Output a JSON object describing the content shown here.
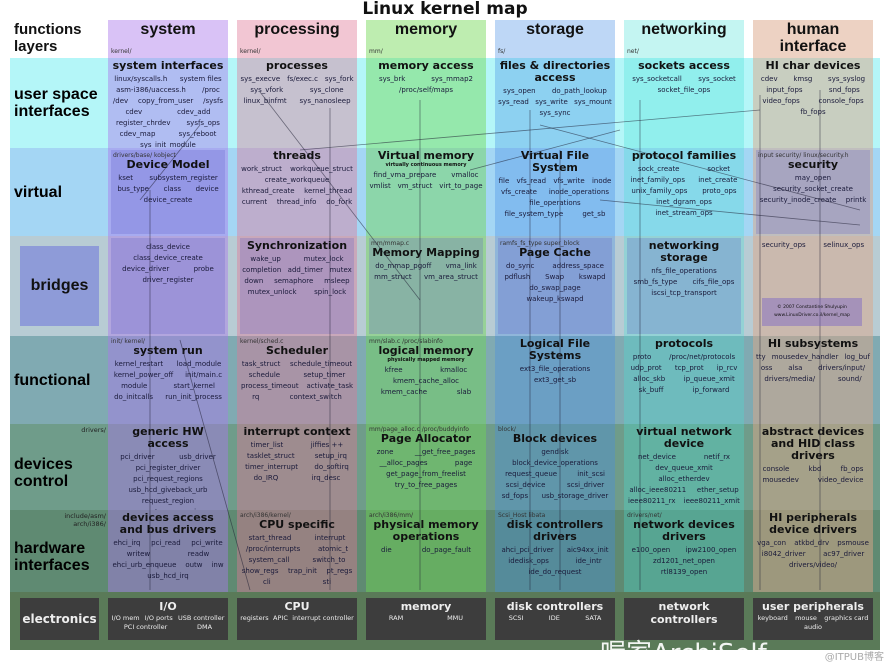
{
  "title": "Linux kernel map",
  "corner": {
    "line1": "functions",
    "line2": "layers"
  },
  "columns": [
    {
      "title": "system",
      "path": "kernel/",
      "color": "#d8b8f0"
    },
    {
      "title": "processing",
      "path": "kernel/",
      "color": "#eeb8c8"
    },
    {
      "title": "memory",
      "path": "mm/",
      "color": "#c8f0b8"
    },
    {
      "title": "storage",
      "path": "fs/",
      "color": "#a8d0f8"
    },
    {
      "title": "networking",
      "path": "net/",
      "color": "#a8f4f4"
    },
    {
      "title": "human interface",
      "path": "",
      "color": "#ecd0c4"
    }
  ],
  "rows": [
    {
      "label": "user space interfaces",
      "side": "",
      "color": "#b4f6f8"
    },
    {
      "label": "virtual",
      "side": "",
      "color": "#a4d6f4"
    },
    {
      "label": "bridges",
      "side": "",
      "color": "#b8ccd4"
    },
    {
      "label": "functional",
      "side": "",
      "color": "#80aab2"
    },
    {
      "label": "devices control",
      "side": "drivers/",
      "color": "#6f9c8a"
    },
    {
      "label": "hardware interfaces",
      "side": "include/asm/ arch/i386/",
      "color": "#5f8a72"
    }
  ],
  "cells": [
    [
      {
        "path": "",
        "title": "system interfaces",
        "sub": "",
        "items": [
          "linux/syscalls.h",
          "system files",
          "asm-i386/uaccess.h",
          "/proc",
          "/dev",
          "copy_from_user",
          "/sysfs",
          "cdev",
          "cdev_add",
          "register_chrdev",
          "sysfs_ops",
          "cdev_map",
          "sys_reboot",
          "sys_init_module"
        ]
      },
      {
        "path": "",
        "title": "processes",
        "sub": "",
        "items": [
          "sys_execve",
          "fs/exec.c",
          "sys_fork",
          "sys_vfork",
          "sys_clone",
          "linux_binfmt",
          "sys_nanosleep"
        ]
      },
      {
        "path": "",
        "title": "memory access",
        "sub": "",
        "items": [
          "sys_brk",
          "sys_mmap2",
          "/proc/self/maps"
        ]
      },
      {
        "path": "",
        "title": "files & directories access",
        "sub": "",
        "items": [
          "sys_open",
          "do_path_lookup",
          "sys_read",
          "sys_write",
          "sys_mount",
          "sys_sync"
        ]
      },
      {
        "path": "",
        "title": "sockets access",
        "sub": "",
        "items": [
          "sys_socketcall",
          "sys_socket",
          "socket_file_ops"
        ]
      },
      {
        "path": "",
        "title": "HI char devices",
        "sub": "",
        "items": [
          "cdev",
          "kmsg",
          "sys_syslog",
          "input_fops",
          "snd_fops",
          "video_fops",
          "console_fops",
          "fb_fops"
        ]
      }
    ],
    [
      {
        "path": "drivers/base/  kobject",
        "title": "Device Model",
        "sub": "",
        "items": [
          "kset",
          "subsystem_register",
          "bus_type",
          "class",
          "device",
          "device_create"
        ]
      },
      {
        "path": "",
        "title": "threads",
        "sub": "",
        "items": [
          "work_struct",
          "workqueue_struct",
          "create_workqueue",
          "kthread_create",
          "kernel_thread",
          "current",
          "thread_info",
          "do_fork"
        ]
      },
      {
        "path": "",
        "title": "Virtual memory",
        "sub": "virtually continuous memory",
        "items": [
          "find_vma_prepare",
          "vmalloc",
          "vmlist",
          "vm_struct",
          "virt_to_page"
        ]
      },
      {
        "path": "",
        "title": "Virtual File System",
        "sub": "",
        "items": [
          "file",
          "vfs_read",
          "vfs_write",
          "inode",
          "vfs_create",
          "inode_operations",
          "file_operations",
          "file_system_type",
          "get_sb"
        ]
      },
      {
        "path": "",
        "title": "protocol families",
        "sub": "",
        "items": [
          "sock_create",
          "socket",
          "inet_family_ops",
          "inet_create",
          "unix_family_ops",
          "proto_ops",
          "inet_dgram_ops",
          "inet_stream_ops"
        ]
      },
      {
        "path": "input  security/  linux/security.h",
        "title": "security",
        "sub": "",
        "items": [
          "may_open",
          "security_socket_create",
          "security_inode_create",
          "printk"
        ]
      }
    ],
    [
      {
        "path": "",
        "title": "",
        "sub": "",
        "items": [
          "class_device",
          "class_device_create",
          "device_driver",
          "probe",
          "driver_register"
        ]
      },
      {
        "path": "",
        "title": "Synchronization",
        "sub": "",
        "items": [
          "wake_up",
          "mutex_lock",
          "completion",
          "add_timer",
          "mutex",
          "down",
          "semaphore",
          "msleep",
          "mutex_unlock",
          "spin_lock"
        ]
      },
      {
        "path": "mm/mmap.c",
        "title": "Memory Mapping",
        "sub": "",
        "items": [
          "do_mmap_pgoff",
          "vma_link",
          "mm_struct",
          "vm_area_struct"
        ]
      },
      {
        "path": "ramfs_fs_type  super_block",
        "title": "Page Cache",
        "sub": "",
        "items": [
          "do_sync",
          "address_space",
          "pdflush",
          "Swap",
          "kswapd",
          "do_swap_page",
          "wakeup_kswapd"
        ]
      },
      {
        "path": "",
        "title": "networking storage",
        "sub": "",
        "items": [
          "nfs_file_operations",
          "smb_fs_type",
          "cifs_file_ops",
          "iscsi_tcp_transport"
        ]
      },
      {
        "path": "",
        "title": "",
        "sub": "",
        "items": [
          "security_ops",
          "selinux_ops"
        ]
      }
    ],
    [
      {
        "path": "init/ kernel/",
        "title": "system run",
        "sub": "",
        "items": [
          "kernel_restart",
          "load_module",
          "kernel_power_off",
          "init/main.c",
          "module",
          "start_kernel",
          "do_initcalls",
          "run_init_process"
        ]
      },
      {
        "path": "kernel/sched.c",
        "title": "Scheduler",
        "sub": "",
        "items": [
          "task_struct",
          "schedule_timeout",
          "schedule",
          "setup_timer",
          "process_timeout",
          "activate_task",
          "rq",
          "context_switch"
        ]
      },
      {
        "path": "mm/slab.c  /proc/slabinfo",
        "title": "logical memory",
        "sub": "physically mapped memory",
        "items": [
          "kfree",
          "kmalloc",
          "kmem_cache_alloc",
          "kmem_cache",
          "slab"
        ]
      },
      {
        "path": "",
        "title": "Logical File Systems",
        "sub": "",
        "items": [
          "ext3_file_operations",
          "ext3_get_sb"
        ]
      },
      {
        "path": "",
        "title": "protocols",
        "sub": "",
        "items": [
          "proto",
          "/proc/net/protocols",
          "udp_prot",
          "tcp_prot",
          "ip_rcv",
          "alloc_skb",
          "ip_queue_xmit",
          "sk_buff",
          "ip_forward"
        ]
      },
      {
        "path": "",
        "title": "HI subsystems",
        "sub": "",
        "items": [
          "tty",
          "mousedev_handler",
          "log_buf",
          "oss",
          "alsa",
          "drivers/input/",
          "drivers/media/",
          "sound/"
        ]
      }
    ],
    [
      {
        "path": "",
        "title": "generic HW access",
        "sub": "",
        "items": [
          "pci_driver",
          "usb_driver",
          "pci_register_driver",
          "pci_request_regions",
          "usb_hcd_giveback_urb",
          "request_region",
          "request_mem_region",
          "usb_submit_urb",
          "usb_hcd",
          "ioremap"
        ]
      },
      {
        "path": "",
        "title": "interrupt context",
        "sub": "",
        "items": [
          "timer_list",
          "jiffies ++",
          "tasklet_struct",
          "setup_irq",
          "timer_interrupt",
          "do_softirq",
          "do_IRQ",
          "irq_desc"
        ]
      },
      {
        "path": "mm/page_alloc.c  /proc/buddyinfo",
        "title": "Page Allocator",
        "sub": "",
        "items": [
          "zone",
          "__get_free_pages",
          "__alloc_pages",
          "page",
          "get_page_from_freelist",
          "try_to_free_pages"
        ]
      },
      {
        "path": "block/",
        "title": "Block devices",
        "sub": "",
        "items": [
          "gendisk",
          "block_device_operations",
          "request_queue",
          "init_scsi",
          "scsi_device",
          "scsi_driver",
          "sd_fops",
          "usb_storage_driver"
        ]
      },
      {
        "path": "",
        "title": "virtual network device",
        "sub": "",
        "items": [
          "net_device",
          "netif_rx",
          "dev_queue_xmit",
          "alloc_etherdev",
          "alloc_ieee80211",
          "ether_setup",
          "ieee80211_rx",
          "ieee80211_xmit"
        ]
      },
      {
        "path": "",
        "title": "abstract devices and HID class drivers",
        "sub": "",
        "items": [
          "console",
          "kbd",
          "fb_ops",
          "mousedev",
          "video_device"
        ]
      }
    ],
    [
      {
        "path": "",
        "title": "devices access and bus drivers",
        "sub": "",
        "items": [
          "ehci_irq",
          "pci_read",
          "pci_write",
          "writew",
          "readw",
          "ehci_urb_enqueue",
          "outw",
          "inw",
          "usb_hcd_irq"
        ]
      },
      {
        "path": "arch/i386/kernel/",
        "title": "CPU specific",
        "sub": "",
        "items": [
          "start_thread",
          "interrupt",
          "/proc/interrupts",
          "atomic_t",
          "system_call",
          "switch_to",
          "show_regs",
          "trap_init",
          "pt_regs",
          "cli",
          "sti"
        ]
      },
      {
        "path": "arch/i386/mm/",
        "title": "physical memory operations",
        "sub": "",
        "items": [
          "die",
          "do_page_fault"
        ]
      },
      {
        "path": "Scsi_Host  libata",
        "title": "disk controllers drivers",
        "sub": "",
        "items": [
          "ahci_pci_driver",
          "aic94xx_init",
          "idedisk_ops",
          "ide_intr",
          "ide_do_request"
        ]
      },
      {
        "path": "drivers/net/",
        "title": "network devices drivers",
        "sub": "",
        "items": [
          "e100_open",
          "ipw2100_open",
          "zd1201_net_open",
          "rtl8139_open"
        ]
      },
      {
        "path": "",
        "title": "HI peripherals device drivers",
        "sub": "",
        "items": [
          "vga_con",
          "atkbd_drv",
          "psmouse",
          "i8042_driver",
          "ac97_driver",
          "drivers/video/"
        ]
      }
    ]
  ],
  "bridges_label": "bridges",
  "copyright": {
    "line1": "© 2007 Constantine Shulyupin",
    "line2": "www.LinuxDriver.co.il/kernel_map"
  },
  "electronics": {
    "label": "electronics",
    "color": "#5a7a58",
    "boxes": [
      {
        "title": "I/O",
        "items": [
          "I/O mem",
          "I/O ports",
          "USB controller",
          "PCI controller",
          "DMA"
        ]
      },
      {
        "title": "CPU",
        "items": [
          "registers",
          "APIC",
          "interrupt controller"
        ]
      },
      {
        "title": "memory",
        "items": [
          "RAM",
          "MMU"
        ]
      },
      {
        "title": "disk controllers",
        "items": [
          "SCSI",
          "IDE",
          "SATA"
        ]
      },
      {
        "title": "network controllers",
        "items": []
      },
      {
        "title": "user peripherals",
        "items": [
          "keyboard",
          "mouse",
          "graphics card",
          "audio"
        ]
      }
    ]
  },
  "watermark": {
    "main": "喔家ArchiSelf",
    "footer": "@ITPUB博客"
  }
}
